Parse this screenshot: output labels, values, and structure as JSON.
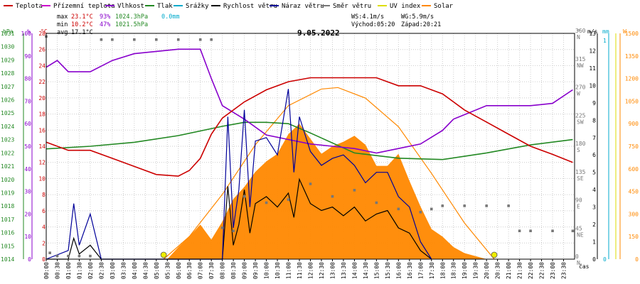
{
  "chart_data": {
    "type": "line",
    "title": "9.05.2022",
    "legend": [
      {
        "label": "Teplota",
        "color": "#cc0000"
      },
      {
        "label": "Přízemní teplota",
        "color": "#cc00cc"
      },
      {
        "label": "Vlhkost",
        "color": "#8800cc"
      },
      {
        "label": "Tlak",
        "color": "#228822"
      },
      {
        "label": "Srážky",
        "color": "#00aacc"
      },
      {
        "label": "Rychlost větru",
        "color": "#000000"
      },
      {
        "label": "Náraz větru",
        "color": "#000099"
      },
      {
        "label": "Směr větru",
        "color": "#777777"
      },
      {
        "label": "UV index",
        "color": "#dddd00"
      },
      {
        "label": "Solar",
        "color": "#ff8800"
      }
    ],
    "stats": {
      "max_label": "max",
      "max_temp": "23.1°C",
      "max_hum": "93%",
      "max_press": "1024.3hPa",
      "rain": "0.0mm",
      "min_label": "min",
      "min_temp": "10.2°C",
      "min_hum": "47%",
      "min_press": "1021.5hPa",
      "avg_label": "avg",
      "avg_temp": "17.1°C",
      "ws": "WS:4.1m/s",
      "wg": "WG:5.9m/s",
      "sunrise": "Východ:05:20",
      "sunset": "Západ:20:21"
    },
    "axes": {
      "hpa_unit": "hPa",
      "pct_unit": "%",
      "c_unit": "°C",
      "deg_unit": "°",
      "ms_unit": "m/s",
      "mm_unit": "mm",
      "w_unit": "W",
      "x_label": "čas",
      "hpa_ticks": [
        "1014",
        "1015",
        "1016",
        "1017",
        "1018",
        "1019",
        "1020",
        "1021",
        "1022",
        "1023",
        "1024",
        "1025",
        "1026",
        "1027",
        "1028",
        "1029",
        "1030",
        "1031"
      ],
      "pct_ticks": [
        "0",
        "10",
        "20",
        "30",
        "40",
        "50",
        "60",
        "70",
        "80",
        "90",
        "100"
      ],
      "c_ticks": [
        "0",
        "2",
        "4",
        "6",
        "8",
        "10",
        "12",
        "14",
        "16",
        "18",
        "20",
        "22",
        "24",
        "26",
        "28"
      ],
      "deg_ticks": [
        "0",
        "45",
        "90",
        "135",
        "180",
        "225",
        "270",
        "315",
        "360"
      ],
      "dir_ticks": [
        "N",
        "NE",
        "E",
        "SE",
        "S",
        "SW",
        "W",
        "NW",
        "N"
      ],
      "ms_ticks": [
        "0",
        "1",
        "2",
        "3",
        "4",
        "5",
        "6",
        "7",
        "8",
        "9",
        "10",
        "11",
        "12",
        "13"
      ],
      "mm_ticks": [
        "0",
        "1"
      ],
      "w_ticks": [
        "0",
        "150",
        "300",
        "450",
        "600",
        "750",
        "900",
        "1050",
        "1200",
        "1350",
        "1500"
      ],
      "x_ticks": [
        "00:00",
        "00:30",
        "01:00",
        "01:30",
        "02:00",
        "02:30",
        "03:00",
        "03:30",
        "04:00",
        "04:30",
        "05:00",
        "05:30",
        "06:00",
        "06:30",
        "07:00",
        "07:30",
        "08:00",
        "08:30",
        "09:00",
        "09:30",
        "10:00",
        "10:30",
        "11:00",
        "11:30",
        "12:00",
        "12:30",
        "13:00",
        "13:30",
        "14:00",
        "14:30",
        "15:00",
        "15:30",
        "16:00",
        "16:30",
        "17:00",
        "17:30",
        "18:00",
        "18:30",
        "19:00",
        "19:30",
        "20:00",
        "20:30",
        "21:00",
        "21:30",
        "22:00",
        "22:30",
        "23:00",
        "23:30"
      ],
      "c_range": [
        0,
        28
      ],
      "pct_range": [
        0,
        100
      ],
      "hpa_range": [
        1014,
        1031
      ],
      "ms_range": [
        0,
        13
      ],
      "w_range": [
        0,
        1500
      ],
      "deg_range": [
        0,
        360
      ]
    },
    "series": [
      {
        "name": "Teplota",
        "unit": "°C",
        "color": "#cc0000",
        "x": [
          "00:00",
          "01:00",
          "02:00",
          "03:00",
          "04:00",
          "05:00",
          "06:00",
          "06:30",
          "07:00",
          "07:30",
          "08:00",
          "09:00",
          "10:00",
          "11:00",
          "12:00",
          "13:00",
          "14:00",
          "15:00",
          "16:00",
          "17:00",
          "18:00",
          "19:00",
          "20:00",
          "21:00",
          "22:00",
          "23:00",
          "23:55"
        ],
        "y": [
          14.5,
          13.5,
          13.5,
          12.5,
          11.5,
          10.5,
          10.3,
          11,
          12.5,
          15.5,
          17.5,
          19.5,
          21,
          22,
          22.5,
          22.5,
          22.5,
          22.5,
          21.5,
          21.5,
          20.5,
          18.5,
          17,
          15.5,
          14,
          13,
          12
        ]
      },
      {
        "name": "Vlhkost",
        "unit": "%",
        "color": "#8800cc",
        "x": [
          "00:00",
          "00:30",
          "01:00",
          "02:00",
          "03:00",
          "04:00",
          "05:00",
          "06:00",
          "07:00",
          "07:30",
          "08:00",
          "09:00",
          "10:00",
          "11:00",
          "12:00",
          "13:00",
          "14:00",
          "15:00",
          "16:00",
          "17:00",
          "18:00",
          "18:30",
          "19:00",
          "20:00",
          "21:00",
          "22:00",
          "23:00",
          "23:55"
        ],
        "y": [
          85,
          88,
          83,
          83,
          88,
          91,
          92,
          93,
          93,
          80,
          68,
          62,
          55,
          53,
          51,
          50,
          49,
          47,
          49,
          51,
          57,
          62,
          64,
          68,
          68,
          68,
          69,
          75
        ]
      },
      {
        "name": "Tlak",
        "unit": "hPa",
        "color": "#228822",
        "x": [
          "00:00",
          "02:00",
          "04:00",
          "06:00",
          "08:00",
          "09:00",
          "10:00",
          "11:00",
          "12:00",
          "14:00",
          "16:00",
          "18:00",
          "20:00",
          "22:00",
          "23:55"
        ],
        "y": [
          1022.3,
          1022.5,
          1022.8,
          1023.3,
          1024.0,
          1024.3,
          1024.3,
          1024.2,
          1023.5,
          1022.0,
          1021.6,
          1021.5,
          1022.0,
          1022.6,
          1023.0
        ]
      },
      {
        "name": "Solar",
        "unit": "W",
        "color": "#ff8800",
        "type": "area",
        "x": [
          "05:30",
          "06:00",
          "06:30",
          "07:00",
          "07:30",
          "08:00",
          "08:30",
          "09:00",
          "09:30",
          "10:00",
          "10:30",
          "11:00",
          "11:30",
          "12:00",
          "12:30",
          "13:00",
          "13:30",
          "14:00",
          "14:30",
          "15:00",
          "15:30",
          "16:00",
          "16:30",
          "17:00",
          "17:30",
          "18:00",
          "18:30",
          "19:00",
          "20:00"
        ],
        "y": [
          0,
          80,
          150,
          230,
          130,
          250,
          400,
          480,
          580,
          650,
          700,
          830,
          900,
          800,
          700,
          750,
          780,
          820,
          760,
          620,
          620,
          700,
          520,
          350,
          200,
          150,
          80,
          40,
          0
        ]
      },
      {
        "name": "Solar max",
        "unit": "W",
        "color": "#ff8800",
        "type": "curve",
        "x": [
          "05:20",
          "06:30",
          "08:00",
          "09:30",
          "11:00",
          "12:30",
          "13:15",
          "14:30",
          "16:00",
          "17:30",
          "19:00",
          "20:21"
        ],
        "y": [
          0,
          150,
          430,
          760,
          1020,
          1130,
          1140,
          1070,
          880,
          570,
          240,
          0
        ]
      },
      {
        "name": "Rychlost větru",
        "unit": "m/s",
        "color": "#000000",
        "x": [
          "00:00",
          "01:00",
          "01:15",
          "01:30",
          "02:00",
          "02:30",
          "07:30",
          "08:00",
          "08:15",
          "08:30",
          "08:45",
          "09:00",
          "09:15",
          "09:30",
          "10:00",
          "10:30",
          "11:00",
          "11:15",
          "11:30",
          "12:00",
          "12:30",
          "13:00",
          "13:30",
          "14:00",
          "14:30",
          "15:00",
          "15:30",
          "16:00",
          "16:30",
          "17:00",
          "17:30"
        ],
        "y": [
          0,
          0,
          1.2,
          0.3,
          0.8,
          0,
          0,
          0,
          4.2,
          0.8,
          2.0,
          4.0,
          1.5,
          3.2,
          3.6,
          3.0,
          3.8,
          2.4,
          4.6,
          3.2,
          2.8,
          3.0,
          2.5,
          3.0,
          2.2,
          2.6,
          2.8,
          1.8,
          1.5,
          0.5,
          0
        ]
      },
      {
        "name": "Náraz větru",
        "unit": "m/s",
        "color": "#000099",
        "x": [
          "00:00",
          "01:00",
          "01:15",
          "01:30",
          "02:00",
          "02:30",
          "07:30",
          "08:00",
          "08:15",
          "08:30",
          "08:45",
          "09:00",
          "09:15",
          "09:30",
          "10:00",
          "10:30",
          "11:00",
          "11:15",
          "11:30",
          "12:00",
          "12:30",
          "13:00",
          "13:30",
          "14:00",
          "14:30",
          "15:00",
          "15:30",
          "16:00",
          "16:30",
          "17:00",
          "17:30"
        ],
        "y": [
          0,
          0.5,
          3.2,
          0.8,
          2.6,
          0,
          0,
          0,
          8.2,
          1.8,
          4.0,
          8.6,
          3.0,
          6.8,
          7.0,
          6.0,
          9.8,
          5.0,
          8.2,
          6.2,
          5.4,
          5.8,
          6.0,
          5.4,
          4.4,
          5.0,
          5.0,
          3.6,
          3.0,
          1.0,
          0
        ]
      },
      {
        "name": "Směr větru",
        "unit": "°",
        "color": "#777777",
        "type": "points",
        "x": [
          "00:00",
          "00:10",
          "00:30",
          "01:00",
          "01:30",
          "02:00",
          "02:30",
          "03:00",
          "04:00",
          "05:00",
          "06:00",
          "07:00",
          "07:30",
          "08:00",
          "08:30",
          "09:00",
          "10:00",
          "11:00",
          "12:00",
          "13:00",
          "14:00",
          "15:00",
          "16:00",
          "17:00",
          "17:30",
          "18:00",
          "19:00",
          "20:00",
          "21:00",
          "21:30",
          "22:00",
          "23:00",
          "23:55"
        ],
        "y": [
          355,
          10,
          5,
          5,
          5,
          5,
          350,
          350,
          350,
          350,
          350,
          350,
          350,
          50,
          45,
          100,
          90,
          95,
          120,
          100,
          110,
          90,
          80,
          75,
          80,
          85,
          85,
          85,
          85,
          45,
          45,
          45,
          45
        ]
      }
    ]
  }
}
